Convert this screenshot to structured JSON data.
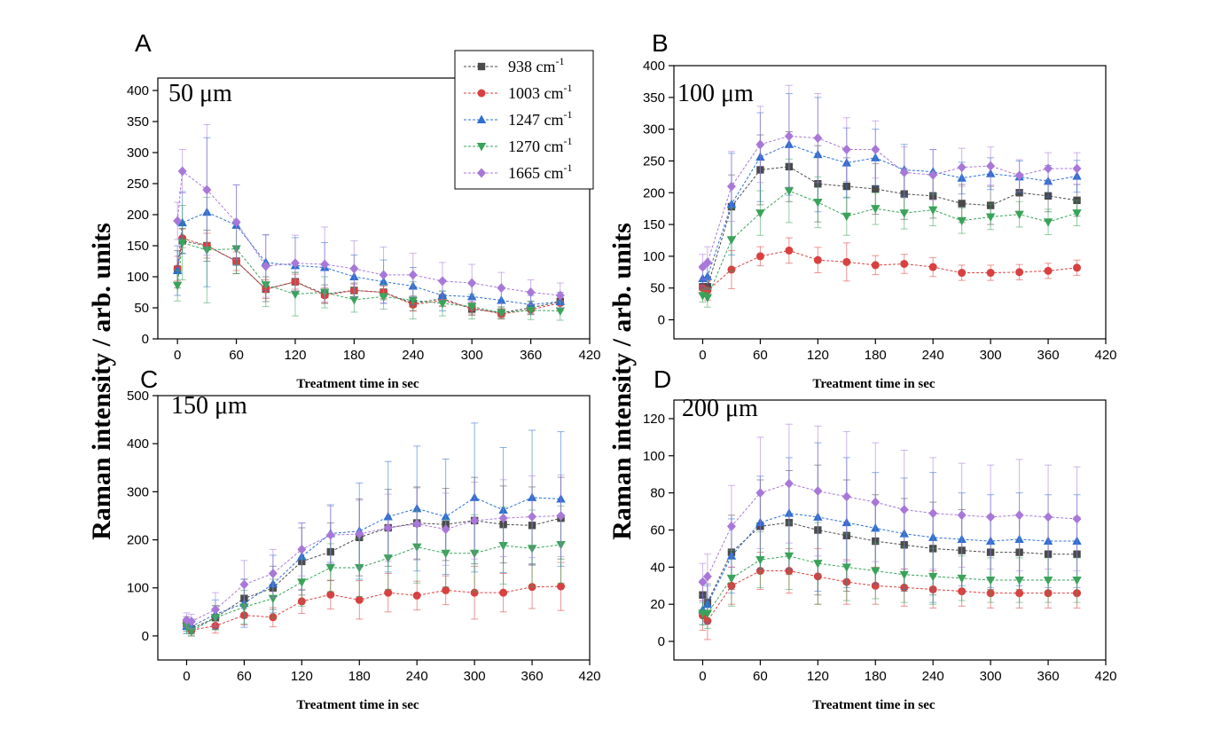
{
  "figure": {
    "ylabel": "Raman intensity / arb. units",
    "legend": [
      {
        "label": "938 cm",
        "sup": "-1",
        "color": "#4a4a4a",
        "marker": "square"
      },
      {
        "label": "1003 cm",
        "sup": "-1",
        "color": "#d94040",
        "marker": "circle"
      },
      {
        "label": "1247 cm",
        "sup": "-1",
        "color": "#2e6fd1",
        "marker": "triangle-up"
      },
      {
        "label": "1270 cm",
        "sup": "-1",
        "color": "#3aa35a",
        "marker": "triangle-down"
      },
      {
        "label": "1665 cm",
        "sup": "-1",
        "color": "#a878d8",
        "marker": "diamond"
      }
    ]
  },
  "chart_data": [
    {
      "type": "line",
      "panel": "A",
      "size_label": "50 μm",
      "xlabel": "Treatment time in sec",
      "x": [
        0,
        5,
        30,
        60,
        90,
        120,
        150,
        180,
        210,
        240,
        270,
        300,
        330,
        360,
        390
      ],
      "xticks": [
        0,
        60,
        120,
        180,
        240,
        300,
        360,
        420
      ],
      "yticks": [
        0,
        50,
        100,
        150,
        200,
        250,
        300,
        350,
        400
      ],
      "xlim": [
        -20,
        420
      ],
      "ylim": [
        0,
        420
      ],
      "series": [
        {
          "name": "938 cm-1",
          "values": [
            112,
            158,
            150,
            125,
            80,
            92,
            72,
            78,
            75,
            57,
            65,
            48,
            42,
            50,
            60
          ],
          "errors": [
            30,
            20,
            25,
            20,
            20,
            15,
            15,
            12,
            12,
            12,
            12,
            10,
            8,
            10,
            10
          ]
        },
        {
          "name": "1003 cm-1",
          "values": [
            113,
            162,
            150,
            125,
            80,
            92,
            70,
            78,
            75,
            55,
            62,
            50,
            40,
            47,
            58
          ],
          "errors": [
            20,
            15,
            20,
            15,
            15,
            12,
            12,
            10,
            10,
            10,
            10,
            10,
            8,
            8,
            8
          ]
        },
        {
          "name": "1247 cm-1",
          "values": [
            110,
            187,
            204,
            183,
            123,
            118,
            115,
            100,
            92,
            85,
            70,
            68,
            62,
            55,
            60
          ],
          "errors": [
            40,
            50,
            120,
            65,
            45,
            45,
            40,
            35,
            35,
            30,
            25,
            20,
            20,
            15,
            15
          ]
        },
        {
          "name": "1270 cm-1",
          "values": [
            86,
            155,
            143,
            145,
            87,
            72,
            75,
            63,
            68,
            62,
            57,
            52,
            42,
            46,
            45
          ],
          "errors": [
            25,
            60,
            85,
            40,
            35,
            35,
            25,
            20,
            20,
            30,
            20,
            20,
            10,
            15,
            15
          ]
        },
        {
          "name": "1665 cm-1",
          "values": [
            190,
            270,
            240,
            188,
            117,
            122,
            120,
            113,
            103,
            103,
            93,
            90,
            82,
            75,
            70
          ],
          "errors": [
            30,
            35,
            105,
            60,
            50,
            45,
            60,
            45,
            45,
            35,
            30,
            30,
            25,
            20,
            20
          ]
        }
      ]
    },
    {
      "type": "line",
      "panel": "B",
      "size_label": "100 μm",
      "xlabel": "Treatment time in sec",
      "x": [
        0,
        5,
        30,
        60,
        90,
        120,
        150,
        180,
        210,
        240,
        270,
        300,
        330,
        360,
        390
      ],
      "xticks": [
        0,
        60,
        120,
        180,
        240,
        300,
        360,
        420
      ],
      "yticks": [
        0,
        50,
        100,
        150,
        200,
        250,
        300,
        350,
        400
      ],
      "xlim": [
        -30,
        420
      ],
      "ylim": [
        -30,
        400
      ],
      "series": [
        {
          "name": "938 cm-1",
          "values": [
            52,
            52,
            178,
            236,
            241,
            214,
            210,
            206,
            198,
            195,
            183,
            180,
            200,
            195,
            188
          ],
          "errors": [
            10,
            15,
            50,
            55,
            55,
            60,
            45,
            40,
            40,
            35,
            30,
            30,
            30,
            25,
            25
          ]
        },
        {
          "name": "1003 cm-1",
          "values": [
            50,
            46,
            79,
            100,
            109,
            94,
            91,
            86,
            88,
            83,
            74,
            74,
            75,
            77,
            82
          ],
          "errors": [
            10,
            15,
            30,
            15,
            20,
            20,
            30,
            15,
            15,
            15,
            12,
            12,
            12,
            12,
            12
          ]
        },
        {
          "name": "1247 cm-1",
          "values": [
            65,
            68,
            182,
            256,
            276,
            260,
            247,
            255,
            236,
            233,
            223,
            230,
            225,
            218,
            226
          ],
          "errors": [
            15,
            20,
            80,
            70,
            80,
            90,
            55,
            45,
            40,
            35,
            25,
            25,
            25,
            25,
            25
          ]
        },
        {
          "name": "1270 cm-1",
          "values": [
            38,
            35,
            126,
            168,
            203,
            185,
            163,
            175,
            168,
            173,
            156,
            162,
            166,
            154,
            168
          ],
          "errors": [
            10,
            15,
            50,
            35,
            50,
            40,
            30,
            25,
            25,
            25,
            20,
            20,
            20,
            20,
            20
          ]
        },
        {
          "name": "1665 cm-1",
          "values": [
            83,
            90,
            210,
            276,
            289,
            286,
            268,
            268,
            232,
            228,
            240,
            242,
            227,
            238,
            238
          ],
          "errors": [
            20,
            25,
            55,
            60,
            80,
            70,
            50,
            45,
            40,
            40,
            30,
            30,
            25,
            25,
            25
          ]
        }
      ]
    },
    {
      "type": "line",
      "panel": "C",
      "size_label": "150 μm",
      "xlabel": "Treatment time in sec",
      "x": [
        0,
        5,
        30,
        60,
        90,
        120,
        150,
        180,
        210,
        240,
        270,
        300,
        330,
        360,
        390
      ],
      "xticks": [
        0,
        60,
        120,
        180,
        240,
        300,
        360,
        420
      ],
      "yticks": [
        0,
        100,
        200,
        300,
        400,
        500
      ],
      "xlim": [
        -30,
        420
      ],
      "ylim": [
        -50,
        500
      ],
      "series": [
        {
          "name": "938 cm-1",
          "values": [
            25,
            15,
            38,
            78,
            100,
            155,
            175,
            205,
            225,
            235,
            232,
            240,
            232,
            230,
            245
          ],
          "errors": [
            15,
            15,
            25,
            40,
            45,
            70,
            60,
            80,
            80,
            75,
            75,
            90,
            80,
            80,
            85
          ]
        },
        {
          "name": "1003 cm-1",
          "values": [
            25,
            12,
            21,
            43,
            39,
            72,
            86,
            75,
            90,
            84,
            95,
            90,
            90,
            102,
            103
          ],
          "errors": [
            10,
            8,
            15,
            20,
            20,
            25,
            30,
            40,
            40,
            30,
            30,
            55,
            40,
            45,
            50
          ]
        },
        {
          "name": "1247 cm-1",
          "values": [
            20,
            20,
            45,
            68,
            108,
            165,
            213,
            218,
            248,
            265,
            248,
            288,
            262,
            288,
            285
          ],
          "errors": [
            15,
            15,
            30,
            50,
            60,
            70,
            60,
            100,
            115,
            130,
            120,
            155,
            130,
            140,
            140
          ]
        },
        {
          "name": "1270 cm-1",
          "values": [
            20,
            10,
            38,
            60,
            78,
            112,
            142,
            142,
            162,
            185,
            172,
            172,
            188,
            182,
            190
          ],
          "errors": [
            15,
            10,
            25,
            35,
            40,
            50,
            50,
            60,
            65,
            75,
            70,
            80,
            80,
            80,
            80
          ]
        },
        {
          "name": "1665 cm-1",
          "values": [
            33,
            30,
            55,
            107,
            130,
            180,
            210,
            212,
            225,
            233,
            222,
            240,
            245,
            248,
            250
          ],
          "errors": [
            15,
            15,
            35,
            50,
            50,
            55,
            60,
            70,
            70,
            75,
            75,
            80,
            80,
            85,
            85
          ]
        }
      ]
    },
    {
      "type": "line",
      "panel": "D",
      "size_label": "200 μm",
      "xlabel": "Treatment time in sec",
      "x": [
        0,
        5,
        30,
        60,
        90,
        120,
        150,
        180,
        210,
        240,
        270,
        300,
        330,
        360,
        390
      ],
      "xticks": [
        0,
        60,
        120,
        180,
        240,
        300,
        360,
        420
      ],
      "yticks": [
        0,
        20,
        40,
        60,
        80,
        100,
        120
      ],
      "xlim": [
        -30,
        420
      ],
      "ylim": [
        -10,
        130
      ],
      "series": [
        {
          "name": "938 cm-1",
          "values": [
            25,
            21,
            48,
            62,
            64,
            60,
            57,
            54,
            52,
            50,
            49,
            48,
            48,
            47,
            47
          ],
          "errors": [
            8,
            10,
            20,
            25,
            28,
            35,
            30,
            25,
            25,
            25,
            22,
            20,
            20,
            20,
            20
          ]
        },
        {
          "name": "1003 cm-1",
          "values": [
            14,
            11,
            30,
            38,
            38,
            35,
            32,
            30,
            29,
            28,
            27,
            26,
            26,
            26,
            26
          ],
          "errors": [
            8,
            10,
            10,
            10,
            12,
            15,
            12,
            10,
            10,
            10,
            8,
            8,
            8,
            8,
            8
          ]
        },
        {
          "name": "1247 cm-1",
          "values": [
            17,
            20,
            46,
            64,
            69,
            67,
            64,
            61,
            58,
            56,
            55,
            54,
            55,
            54,
            54
          ],
          "errors": [
            8,
            10,
            20,
            25,
            30,
            40,
            35,
            30,
            30,
            35,
            25,
            25,
            25,
            25,
            25
          ]
        },
        {
          "name": "1270 cm-1",
          "values": [
            15,
            15,
            34,
            44,
            46,
            42,
            40,
            38,
            36,
            35,
            34,
            33,
            33,
            33,
            33
          ],
          "errors": [
            6,
            8,
            15,
            15,
            18,
            22,
            18,
            15,
            15,
            15,
            12,
            12,
            12,
            12,
            12
          ]
        },
        {
          "name": "1665 cm-1",
          "values": [
            32,
            35,
            62,
            80,
            85,
            81,
            78,
            75,
            71,
            69,
            68,
            67,
            68,
            67,
            66
          ],
          "errors": [
            10,
            12,
            22,
            30,
            32,
            35,
            35,
            32,
            32,
            30,
            28,
            28,
            30,
            28,
            28
          ]
        }
      ]
    }
  ]
}
